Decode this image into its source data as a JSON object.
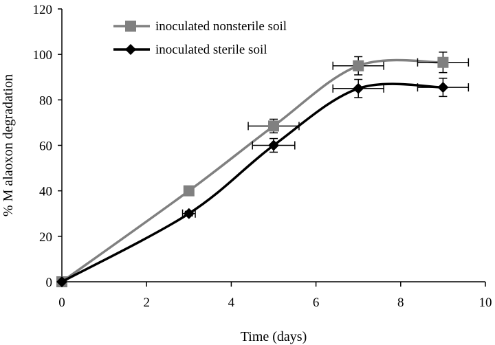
{
  "chart_data": {
    "type": "line",
    "xlabel": "Time (days)",
    "ylabel": "% M alaoxon degradation",
    "xlim": [
      0,
      10
    ],
    "ylim": [
      0,
      120
    ],
    "xticks": [
      0,
      2,
      4,
      6,
      8,
      10
    ],
    "yticks": [
      0,
      20,
      40,
      60,
      80,
      100,
      120
    ],
    "grid": false,
    "legend_position": "top-left",
    "series": [
      {
        "name": "inoculated nonsterile soil",
        "color": "#808080",
        "marker": "square",
        "x": [
          0,
          3,
          5,
          7,
          9
        ],
        "y": [
          0,
          40,
          68.5,
          95,
          96.5
        ],
        "y_err": [
          0,
          1,
          3,
          4,
          4.5
        ],
        "x_err": [
          0,
          0,
          0.6,
          0.6,
          0.6
        ]
      },
      {
        "name": "inoculated sterile soil",
        "color": "#000000",
        "marker": "diamond",
        "x": [
          0,
          3,
          5,
          7,
          9
        ],
        "y": [
          0,
          30,
          60,
          85,
          85.5
        ],
        "y_err": [
          0,
          1,
          3,
          4,
          4
        ],
        "x_err": [
          0,
          0.15,
          0.5,
          0.6,
          0.6
        ]
      }
    ]
  }
}
